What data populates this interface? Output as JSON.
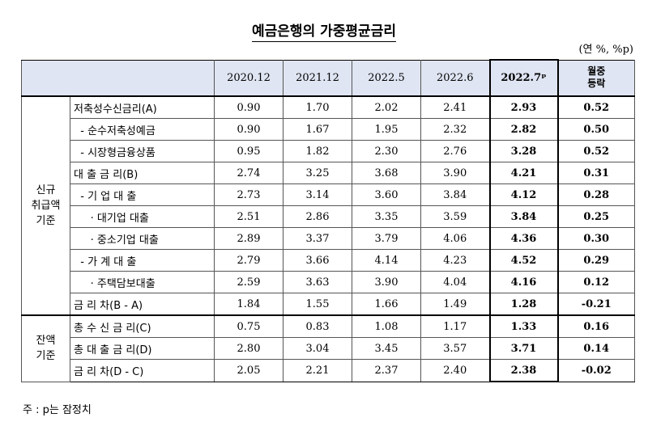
{
  "title": "예금은행의 가중평균금리",
  "unit": "(연 %, %p)",
  "columns": [
    "2020.12",
    "2021.12",
    "2022.5",
    "2022.6",
    "2022.7ᵖ",
    "월중\n등락"
  ],
  "groups": [
    {
      "label": "신규\n취급액\n기준",
      "rows": [
        {
          "name": "저축성수신금리(A)",
          "values": [
            "0.90",
            "1.70",
            "2.02",
            "2.41",
            "2.93",
            "0.52"
          ]
        },
        {
          "name": "  - 순수저축성예금",
          "values": [
            "0.90",
            "1.67",
            "1.95",
            "2.32",
            "2.82",
            "0.50"
          ]
        },
        {
          "name": "  - 시장형금융상품",
          "values": [
            "0.95",
            "1.82",
            "2.30",
            "2.76",
            "3.28",
            "0.52"
          ]
        },
        {
          "name": "대 출 금 리(B)",
          "values": [
            "2.74",
            "3.25",
            "3.68",
            "3.90",
            "4.21",
            "0.31"
          ]
        },
        {
          "name": "  - 기 업 대 출",
          "values": [
            "2.73",
            "3.14",
            "3.60",
            "3.84",
            "4.12",
            "0.28"
          ]
        },
        {
          "name": "     · 대기업 대출",
          "values": [
            "2.51",
            "2.86",
            "3.35",
            "3.59",
            "3.84",
            "0.25"
          ]
        },
        {
          "name": "     · 중소기업 대출",
          "values": [
            "2.89",
            "3.37",
            "3.79",
            "4.06",
            "4.36",
            "0.30"
          ]
        },
        {
          "name": "  - 가 계 대 출",
          "values": [
            "2.79",
            "3.66",
            "4.14",
            "4.23",
            "4.52",
            "0.29"
          ]
        },
        {
          "name": "     · 주택담보대출",
          "values": [
            "2.59",
            "3.63",
            "3.90",
            "4.04",
            "4.16",
            "0.12"
          ]
        },
        {
          "name": "금 리 차(B - A)",
          "values": [
            "1.84",
            "1.55",
            "1.66",
            "1.49",
            "1.28",
            "-0.21"
          ]
        }
      ]
    },
    {
      "label": "잔액\n기준",
      "rows": [
        {
          "name": "총 수 신 금 리(C)",
          "values": [
            "0.75",
            "0.83",
            "1.08",
            "1.17",
            "1.33",
            "0.16"
          ]
        },
        {
          "name": "총 대 출 금 리(D)",
          "values": [
            "2.80",
            "3.04",
            "3.45",
            "3.57",
            "3.71",
            "0.14"
          ]
        },
        {
          "name": "금 리 차(D - C)",
          "values": [
            "2.05",
            "2.21",
            "2.37",
            "2.40",
            "2.38",
            "-0.02"
          ]
        }
      ]
    }
  ],
  "note": "주 : p는 잠정치"
}
